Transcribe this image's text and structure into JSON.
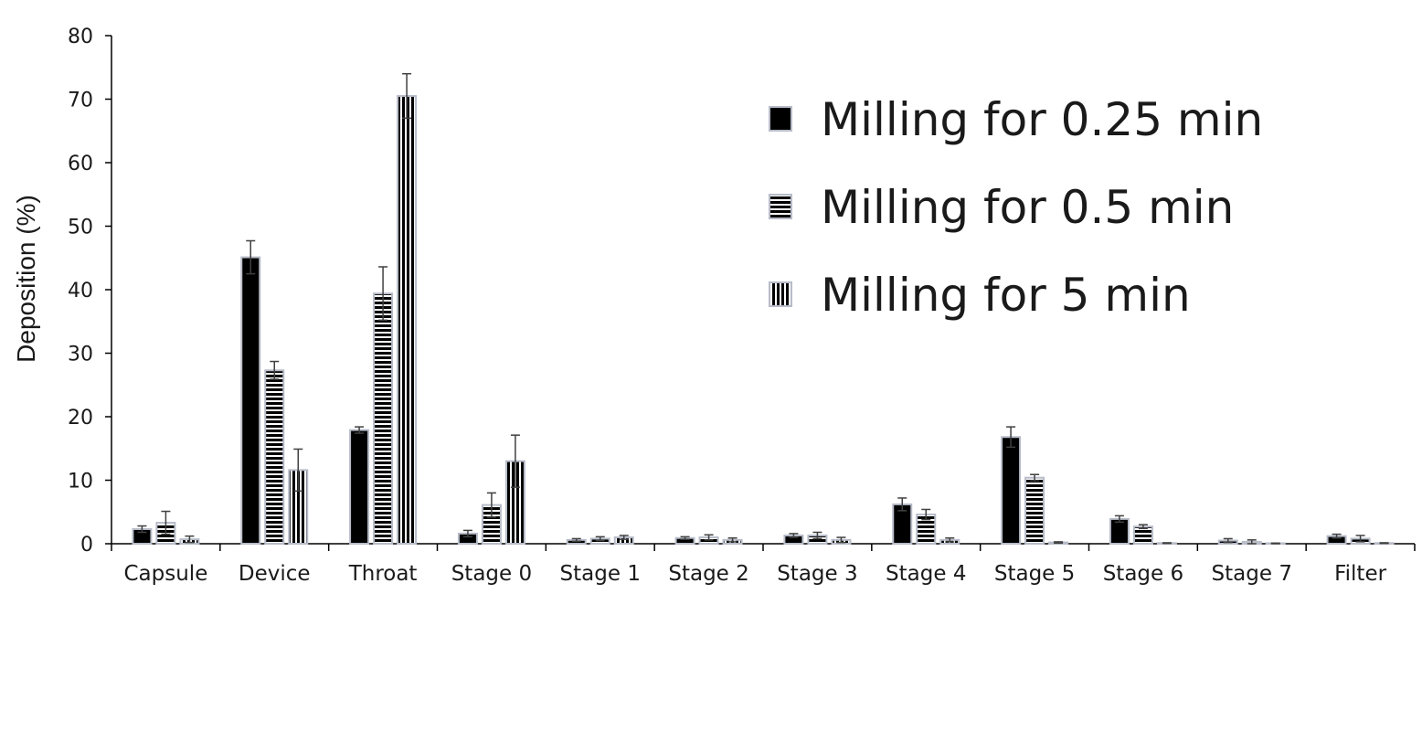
{
  "chart_data": {
    "type": "bar",
    "title": "",
    "xlabel": "",
    "ylabel": "Deposition (%)",
    "ylim": [
      0,
      80
    ],
    "yticks": [
      0,
      10,
      20,
      30,
      40,
      50,
      60,
      70,
      80
    ],
    "grid": false,
    "legend_position": "top-right",
    "categories": [
      "Capsule",
      "Device",
      "Throat",
      "Stage 0",
      "Stage 1",
      "Stage 2",
      "Stage 3",
      "Stage 4",
      "Stage 5",
      "Stage 6",
      "Stage 7",
      "Filter"
    ],
    "series": [
      {
        "name": "Milling for 0.25 min",
        "pattern": "solid",
        "color": "#000000",
        "values": [
          2.3,
          45.1,
          17.9,
          1.6,
          0.6,
          0.9,
          1.3,
          6.2,
          16.8,
          3.9,
          0.5,
          1.2
        ],
        "errors": [
          0.5,
          2.6,
          0.5,
          0.5,
          0.2,
          0.2,
          0.3,
          1.0,
          1.6,
          0.5,
          0.3,
          0.3
        ]
      },
      {
        "name": "Milling for 0.5 min",
        "pattern": "horizontal-stripes",
        "color": "#000000",
        "values": [
          3.3,
          27.3,
          39.4,
          6.1,
          0.8,
          1.0,
          1.3,
          4.6,
          10.4,
          2.7,
          0.3,
          0.8
        ],
        "errors": [
          1.8,
          1.4,
          4.2,
          1.9,
          0.3,
          0.4,
          0.5,
          0.8,
          0.5,
          0.3,
          0.3,
          0.5
        ]
      },
      {
        "name": "Milling for 5 min",
        "pattern": "vertical-stripes",
        "color": "#000000",
        "values": [
          0.7,
          11.6,
          70.5,
          13.0,
          1.0,
          0.6,
          0.6,
          0.6,
          0.2,
          0.1,
          0.05,
          0.1
        ],
        "errors": [
          0.5,
          3.3,
          3.5,
          4.1,
          0.3,
          0.3,
          0.4,
          0.3,
          0.1,
          0.05,
          0.05,
          0.05
        ]
      }
    ]
  }
}
